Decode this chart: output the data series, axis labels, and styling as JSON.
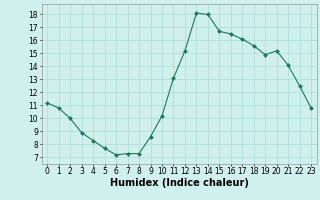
{
  "x": [
    0,
    1,
    2,
    3,
    4,
    5,
    6,
    7,
    8,
    9,
    10,
    11,
    12,
    13,
    14,
    15,
    16,
    17,
    18,
    19,
    20,
    21,
    22,
    23
  ],
  "y": [
    11.2,
    10.8,
    10.0,
    8.9,
    8.3,
    7.7,
    7.2,
    7.3,
    7.3,
    8.6,
    10.2,
    13.1,
    15.2,
    18.1,
    18.0,
    16.7,
    16.5,
    16.1,
    15.6,
    14.9,
    15.2,
    14.1,
    12.5,
    10.8
  ],
  "line_color": "#1a7a5e",
  "marker": "D",
  "marker_size": 2,
  "bg_color": "#cff0ec",
  "grid_color": "#aaddda",
  "xlabel": "Humidex (Indice chaleur)",
  "ylim": [
    6.5,
    18.8
  ],
  "xlim": [
    -0.5,
    23.5
  ],
  "yticks": [
    7,
    8,
    9,
    10,
    11,
    12,
    13,
    14,
    15,
    16,
    17,
    18
  ],
  "xticks": [
    0,
    1,
    2,
    3,
    4,
    5,
    6,
    7,
    8,
    9,
    10,
    11,
    12,
    13,
    14,
    15,
    16,
    17,
    18,
    19,
    20,
    21,
    22,
    23
  ],
  "tick_fontsize": 5.5,
  "xlabel_fontsize": 7,
  "linewidth": 0.8
}
